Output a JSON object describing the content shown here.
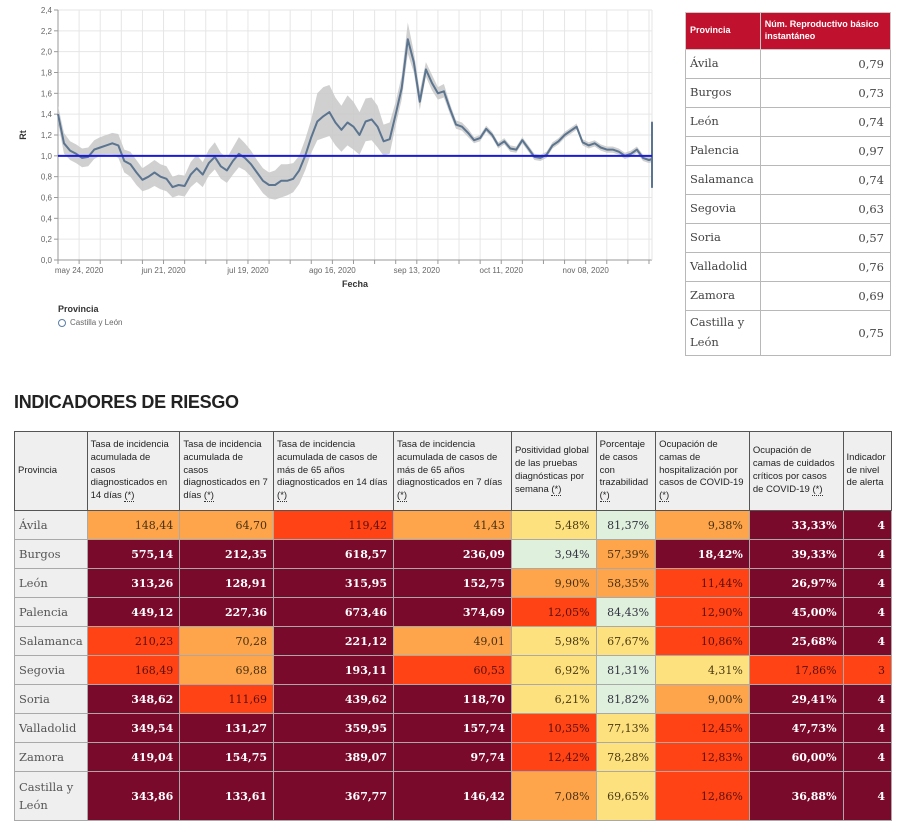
{
  "chart_data": {
    "type": "line",
    "title": "",
    "xlabel": "Fecha",
    "ylabel": "Rt",
    "ylim": [
      0.0,
      2.4
    ],
    "yticks": [
      "0,0",
      "0,2",
      "0,4",
      "0,6",
      "0,8",
      "1,0",
      "1,2",
      "1,4",
      "1,6",
      "1,8",
      "2,0",
      "2,2",
      "2,4"
    ],
    "ytick_values": [
      0.0,
      0.2,
      0.4,
      0.6,
      0.8,
      1.0,
      1.2,
      1.4,
      1.6,
      1.8,
      2.0,
      2.2,
      2.4
    ],
    "xlim": [
      "2020-05-17",
      "2020-11-30"
    ],
    "xtick_labels": [
      "may 24, 2020",
      "jun 21, 2020",
      "jul 19, 2020",
      "ago 16, 2020",
      "sep 13, 2020",
      "oct 11, 2020",
      "nov 08, 2020"
    ],
    "xtick_dates": [
      "2020-05-24",
      "2020-06-21",
      "2020-07-19",
      "2020-08-16",
      "2020-09-13",
      "2020-10-11",
      "2020-11-08"
    ],
    "reference_line": {
      "y": 1.0,
      "color": "#1a1adb"
    },
    "grid": true,
    "legend": {
      "title": "Provincia",
      "placement": "bottom-left",
      "entries": [
        "Castilla y León"
      ]
    },
    "series": [
      {
        "name": "Castilla y León",
        "color": "#5b7490",
        "band_color": "#c8c8c8",
        "x_start": "2020-05-17",
        "x_step_days": 2,
        "values": [
          1.4,
          1.12,
          1.05,
          1.02,
          0.98,
          0.99,
          1.06,
          1.08,
          1.1,
          1.12,
          1.1,
          0.95,
          0.92,
          0.84,
          0.77,
          0.8,
          0.84,
          0.8,
          0.78,
          0.7,
          0.72,
          0.71,
          0.82,
          0.88,
          0.82,
          0.93,
          0.99,
          0.9,
          0.86,
          0.95,
          1.02,
          0.98,
          0.92,
          0.84,
          0.76,
          0.72,
          0.72,
          0.76,
          0.76,
          0.78,
          0.86,
          1.0,
          1.18,
          1.33,
          1.38,
          1.42,
          1.32,
          1.25,
          1.32,
          1.28,
          1.2,
          1.33,
          1.35,
          1.28,
          1.14,
          1.16,
          1.4,
          1.65,
          2.12,
          1.9,
          1.52,
          1.83,
          1.7,
          1.6,
          1.62,
          1.45,
          1.3,
          1.28,
          1.22,
          1.15,
          1.17,
          1.26,
          1.2,
          1.1,
          1.14,
          1.07,
          1.06,
          1.15,
          1.07,
          0.99,
          0.98,
          1.01,
          1.1,
          1.14,
          1.2,
          1.24,
          1.28,
          1.13,
          1.1,
          1.12,
          1.08,
          1.06,
          1.06,
          1.04,
          1.0,
          1.02,
          1.06,
          0.98,
          0.96,
          0.97,
          0.94,
          0.93,
          1.0,
          1.04,
          1.09,
          1.15,
          1.12,
          1.06,
          1.02,
          1.05,
          1.09,
          1.12,
          1.22,
          1.3,
          1.32,
          1.25,
          1.16,
          1.12,
          1.1,
          1.06,
          1.04,
          1.0,
          0.95,
          0.96,
          0.99,
          1.03,
          0.99,
          0.91,
          0.86,
          0.85,
          0.84,
          0.78,
          0.76,
          0.79,
          0.72,
          0.7,
          0.72,
          0.75,
          0.77,
          0.75
        ],
        "band_lower": [
          1.32,
          1.02,
          0.96,
          0.93,
          0.89,
          0.9,
          0.97,
          1.0,
          1.01,
          1.01,
          0.98,
          0.84,
          0.8,
          0.72,
          0.66,
          0.68,
          0.71,
          0.68,
          0.66,
          0.6,
          0.62,
          0.61,
          0.7,
          0.75,
          0.7,
          0.81,
          0.87,
          0.78,
          0.74,
          0.82,
          0.89,
          0.86,
          0.8,
          0.72,
          0.64,
          0.59,
          0.58,
          0.6,
          0.62,
          0.65,
          0.73,
          0.86,
          1.03,
          1.15,
          1.17,
          1.19,
          1.1,
          1.04,
          1.1,
          1.06,
          1.01,
          1.14,
          1.15,
          1.08,
          1.0,
          1.02,
          1.29,
          1.54,
          1.98,
          1.8,
          1.44,
          1.76,
          1.63,
          1.54,
          1.56,
          1.4,
          1.26,
          1.24,
          1.18,
          1.12,
          1.14,
          1.23,
          1.17,
          1.07,
          1.11,
          1.04,
          1.03,
          1.12,
          1.04,
          0.96,
          0.95,
          0.98,
          1.07,
          1.11,
          1.17,
          1.21,
          1.25,
          1.1,
          1.07,
          1.09,
          1.05,
          1.03,
          1.03,
          1.01,
          0.97,
          0.99,
          1.03,
          0.95,
          0.93,
          0.94,
          0.91,
          0.9,
          0.97,
          1.01,
          1.06,
          1.12,
          1.09,
          1.03,
          0.99,
          1.02,
          1.06,
          1.09,
          1.19,
          1.27,
          1.29,
          1.22,
          1.13,
          1.09,
          1.07,
          1.03,
          1.01,
          0.97,
          0.92,
          0.93,
          0.96,
          1.0,
          0.96,
          0.88,
          0.83,
          0.82,
          0.81,
          0.75,
          0.73,
          0.76,
          0.69,
          0.67,
          0.69,
          0.72,
          0.74,
          0.72
        ],
        "band_upper": [
          1.48,
          1.22,
          1.14,
          1.11,
          1.07,
          1.08,
          1.15,
          1.18,
          1.2,
          1.22,
          1.21,
          1.06,
          1.04,
          0.96,
          0.88,
          0.92,
          0.96,
          0.92,
          0.9,
          0.8,
          0.82,
          0.81,
          0.94,
          1.01,
          0.94,
          1.06,
          1.13,
          1.03,
          0.98,
          1.08,
          1.18,
          1.12,
          1.05,
          0.96,
          0.88,
          0.84,
          0.86,
          0.92,
          0.92,
          0.93,
          1.0,
          1.16,
          1.35,
          1.6,
          1.66,
          1.68,
          1.56,
          1.48,
          1.58,
          1.52,
          1.42,
          1.55,
          1.56,
          1.48,
          1.3,
          1.32,
          1.52,
          1.77,
          2.28,
          2.0,
          1.62,
          1.9,
          1.78,
          1.66,
          1.69,
          1.5,
          1.34,
          1.32,
          1.26,
          1.18,
          1.2,
          1.29,
          1.23,
          1.13,
          1.17,
          1.1,
          1.09,
          1.18,
          1.1,
          1.02,
          1.01,
          1.04,
          1.13,
          1.17,
          1.23,
          1.27,
          1.31,
          1.16,
          1.13,
          1.15,
          1.11,
          1.09,
          1.09,
          1.07,
          1.03,
          1.05,
          1.09,
          1.01,
          0.99,
          1.0,
          0.97,
          0.96,
          1.03,
          1.07,
          1.12,
          1.18,
          1.15,
          1.09,
          1.05,
          1.08,
          1.12,
          1.15,
          1.25,
          1.33,
          1.35,
          1.28,
          1.19,
          1.15,
          1.13,
          1.09,
          1.07,
          1.03,
          0.98,
          0.99,
          1.02,
          1.06,
          1.02,
          0.94,
          0.89,
          0.88,
          0.87,
          0.81,
          0.79,
          0.82,
          0.75,
          0.73,
          0.75,
          0.78,
          0.8,
          0.78
        ]
      }
    ]
  },
  "rt_table": {
    "headers": [
      "Provincia",
      "Núm. Reproductivo básico instantáneo"
    ],
    "header_color": "#c0112f",
    "rows": [
      {
        "provincia": "Ávila",
        "valor": "0,79"
      },
      {
        "provincia": "Burgos",
        "valor": "0,73"
      },
      {
        "provincia": "León",
        "valor": "0,74"
      },
      {
        "provincia": "Palencia",
        "valor": "0,97"
      },
      {
        "provincia": "Salamanca",
        "valor": "0,74"
      },
      {
        "provincia": "Segovia",
        "valor": "0,63"
      },
      {
        "provincia": "Soria",
        "valor": "0,57"
      },
      {
        "provincia": "Valladolid",
        "valor": "0,76"
      },
      {
        "provincia": "Zamora",
        "valor": "0,69"
      },
      {
        "provincia": "Castilla y León",
        "valor": "0,75"
      }
    ]
  },
  "risk_section": {
    "title": "INDICADORES DE RIESGO",
    "colors": {
      "dark": "#790a2c",
      "red": "#ff4314",
      "orange": "#fea54b",
      "yellow": "#fee17f",
      "green": "#dff0dc"
    },
    "headers": [
      {
        "text": "Provincia",
        "ref": ""
      },
      {
        "text": "Tasa de incidencia acumulada de casos diagnosticados en 14 días ",
        "ref": "(*)"
      },
      {
        "text": "Tasa de incidencia acumulada de casos diagnosticados en 7 días ",
        "ref": "(*)"
      },
      {
        "text": "Tasa de incidencia acumulada de casos de más de 65 años diagnosticados en 14 días ",
        "ref": "(*)"
      },
      {
        "text": "Tasa de incidencia acumulada de casos de más de 65 años diagnosticados en 7 días ",
        "ref": "(*)"
      },
      {
        "text": "Positividad global de las pruebas diagnósticas por semana ",
        "ref": "(*)"
      },
      {
        "text": "Porcentaje de casos con trazabilidad ",
        "ref": "(*)"
      },
      {
        "text": "Ocupación de camas de hospitalización por casos de COVID-19 ",
        "ref": "(*)"
      },
      {
        "text": "Ocupación de camas de cuidados críticos por casos de COVID-19 ",
        "ref": "(*)"
      },
      {
        "text": "Indicador de nivel de alerta",
        "ref": ""
      }
    ],
    "rows": [
      {
        "provincia": "Ávila",
        "cells": [
          {
            "v": "148,44",
            "c": "orange"
          },
          {
            "v": "64,70",
            "c": "orange"
          },
          {
            "v": "119,42",
            "c": "red"
          },
          {
            "v": "41,43",
            "c": "orange"
          },
          {
            "v": "5,48%",
            "c": "yellow"
          },
          {
            "v": "81,37%",
            "c": "green"
          },
          {
            "v": "9,38%",
            "c": "orange"
          },
          {
            "v": "33,33%",
            "c": "dark"
          },
          {
            "v": "4",
            "c": "dark"
          }
        ]
      },
      {
        "provincia": "Burgos",
        "cells": [
          {
            "v": "575,14",
            "c": "dark"
          },
          {
            "v": "212,35",
            "c": "dark"
          },
          {
            "v": "618,57",
            "c": "dark"
          },
          {
            "v": "236,09",
            "c": "dark"
          },
          {
            "v": "3,94%",
            "c": "green"
          },
          {
            "v": "57,39%",
            "c": "orange"
          },
          {
            "v": "18,42%",
            "c": "dark"
          },
          {
            "v": "39,33%",
            "c": "dark"
          },
          {
            "v": "4",
            "c": "dark"
          }
        ]
      },
      {
        "provincia": "León",
        "cells": [
          {
            "v": "313,26",
            "c": "dark"
          },
          {
            "v": "128,91",
            "c": "dark"
          },
          {
            "v": "315,95",
            "c": "dark"
          },
          {
            "v": "152,75",
            "c": "dark"
          },
          {
            "v": "9,90%",
            "c": "orange"
          },
          {
            "v": "58,35%",
            "c": "orange"
          },
          {
            "v": "11,44%",
            "c": "red"
          },
          {
            "v": "26,97%",
            "c": "dark"
          },
          {
            "v": "4",
            "c": "dark"
          }
        ]
      },
      {
        "provincia": "Palencia",
        "cells": [
          {
            "v": "449,12",
            "c": "dark"
          },
          {
            "v": "227,36",
            "c": "dark"
          },
          {
            "v": "673,46",
            "c": "dark"
          },
          {
            "v": "374,69",
            "c": "dark"
          },
          {
            "v": "12,05%",
            "c": "red"
          },
          {
            "v": "84,43%",
            "c": "green"
          },
          {
            "v": "12,90%",
            "c": "red"
          },
          {
            "v": "45,00%",
            "c": "dark"
          },
          {
            "v": "4",
            "c": "dark"
          }
        ]
      },
      {
        "provincia": "Salamanca",
        "cells": [
          {
            "v": "210,23",
            "c": "red"
          },
          {
            "v": "70,28",
            "c": "orange"
          },
          {
            "v": "221,12",
            "c": "dark"
          },
          {
            "v": "49,01",
            "c": "orange"
          },
          {
            "v": "5,98%",
            "c": "yellow"
          },
          {
            "v": "67,67%",
            "c": "yellow"
          },
          {
            "v": "10,86%",
            "c": "red"
          },
          {
            "v": "25,68%",
            "c": "dark"
          },
          {
            "v": "4",
            "c": "dark"
          }
        ]
      },
      {
        "provincia": "Segovia",
        "cells": [
          {
            "v": "168,49",
            "c": "red"
          },
          {
            "v": "69,88",
            "c": "orange"
          },
          {
            "v": "193,11",
            "c": "dark"
          },
          {
            "v": "60,53",
            "c": "red"
          },
          {
            "v": "6,92%",
            "c": "yellow"
          },
          {
            "v": "81,31%",
            "c": "green"
          },
          {
            "v": "4,31%",
            "c": "yellow"
          },
          {
            "v": "17,86%",
            "c": "red"
          },
          {
            "v": "3",
            "c": "red"
          }
        ]
      },
      {
        "provincia": "Soria",
        "cells": [
          {
            "v": "348,62",
            "c": "dark"
          },
          {
            "v": "111,69",
            "c": "red"
          },
          {
            "v": "439,62",
            "c": "dark"
          },
          {
            "v": "118,70",
            "c": "dark"
          },
          {
            "v": "6,21%",
            "c": "yellow"
          },
          {
            "v": "81,82%",
            "c": "green"
          },
          {
            "v": "9,00%",
            "c": "orange"
          },
          {
            "v": "29,41%",
            "c": "dark"
          },
          {
            "v": "4",
            "c": "dark"
          }
        ]
      },
      {
        "provincia": "Valladolid",
        "cells": [
          {
            "v": "349,54",
            "c": "dark"
          },
          {
            "v": "131,27",
            "c": "dark"
          },
          {
            "v": "359,95",
            "c": "dark"
          },
          {
            "v": "157,74",
            "c": "dark"
          },
          {
            "v": "10,35%",
            "c": "red"
          },
          {
            "v": "77,13%",
            "c": "yellow"
          },
          {
            "v": "12,45%",
            "c": "red"
          },
          {
            "v": "47,73%",
            "c": "dark"
          },
          {
            "v": "4",
            "c": "dark"
          }
        ]
      },
      {
        "provincia": "Zamora",
        "cells": [
          {
            "v": "419,04",
            "c": "dark"
          },
          {
            "v": "154,75",
            "c": "dark"
          },
          {
            "v": "389,07",
            "c": "dark"
          },
          {
            "v": "97,74",
            "c": "dark"
          },
          {
            "v": "12,42%",
            "c": "red"
          },
          {
            "v": "78,28%",
            "c": "yellow"
          },
          {
            "v": "12,83%",
            "c": "red"
          },
          {
            "v": "60,00%",
            "c": "dark"
          },
          {
            "v": "4",
            "c": "dark"
          }
        ]
      },
      {
        "provincia": "Castilla y León",
        "cells": [
          {
            "v": "343,86",
            "c": "dark"
          },
          {
            "v": "133,61",
            "c": "dark"
          },
          {
            "v": "367,77",
            "c": "dark"
          },
          {
            "v": "146,42",
            "c": "dark"
          },
          {
            "v": "7,08%",
            "c": "orange"
          },
          {
            "v": "69,65%",
            "c": "yellow"
          },
          {
            "v": "12,86%",
            "c": "red"
          },
          {
            "v": "36,88%",
            "c": "dark"
          },
          {
            "v": "4",
            "c": "dark"
          }
        ]
      }
    ]
  }
}
